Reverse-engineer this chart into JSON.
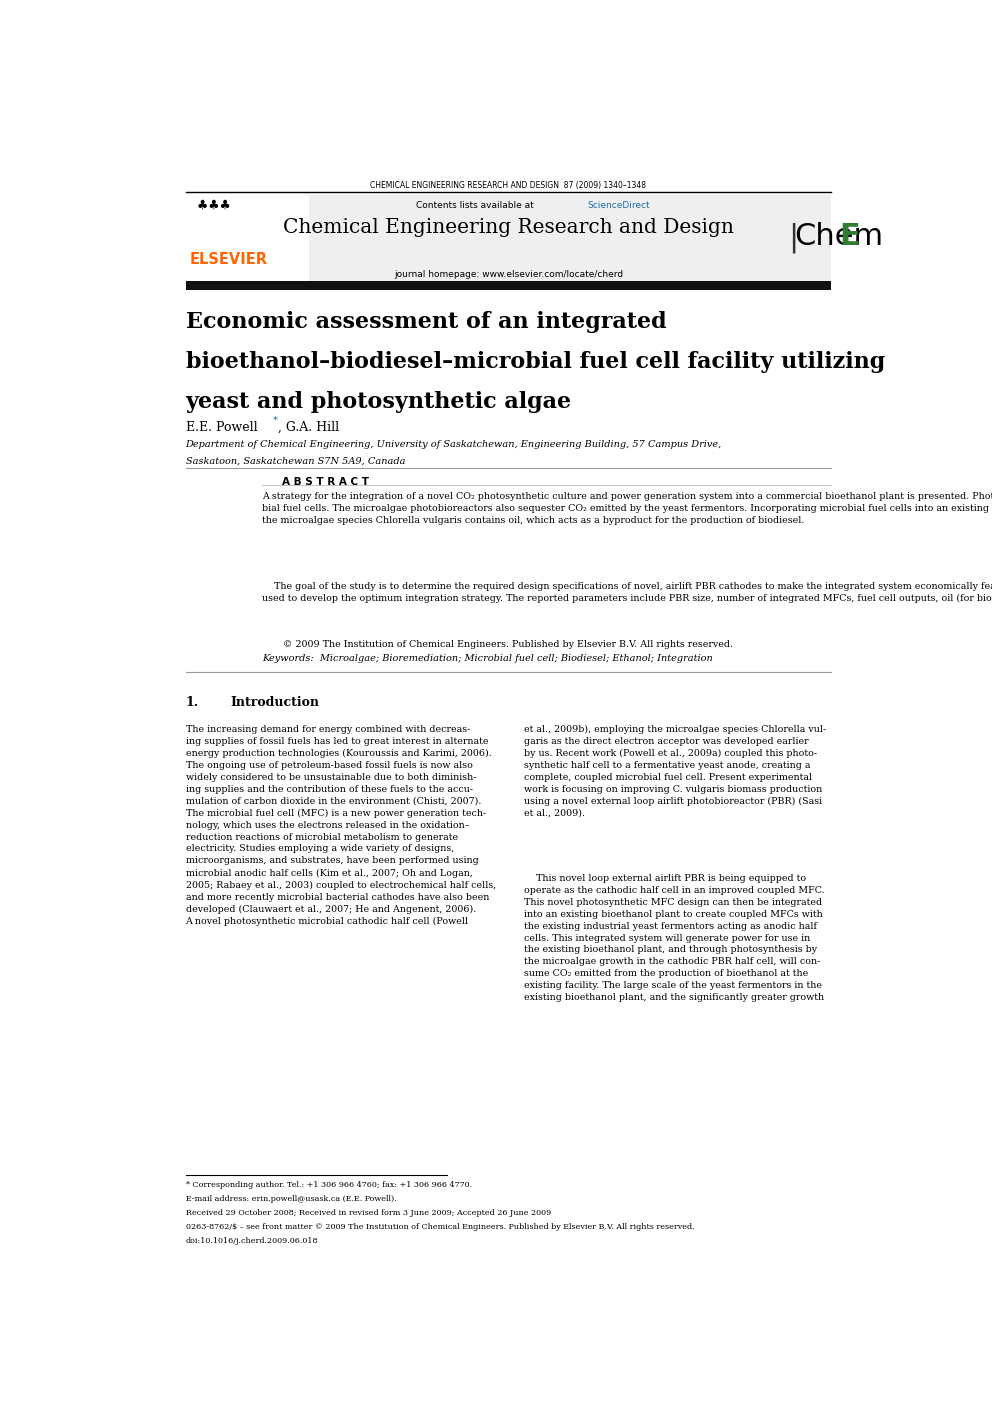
{
  "page_width": 9.92,
  "page_height": 14.03,
  "bg_color": "#ffffff",
  "header_journal": "CHEMICAL ENGINEERING RESEARCH AND DESIGN  87 (2009) 1340–1348",
  "journal_name": "Chemical Engineering Research and Design",
  "journal_url": "journal homepage: www.elsevier.com/locate/cherd",
  "sciencedirect_color": "#1a6faf",
  "elsevier_color": "#ff6600",
  "ichemE_color": "#2e7d32",
  "affiliation1": "Department of Chemical Engineering, University of Saskatchewan, Engineering Building, 57 Campus Drive,",
  "affiliation2": "Saskatoon, Saskatchewan S7N 5A9, Canada",
  "abstract_title": "A B S T R A C T",
  "copyright_text": "© 2009 The Institution of Chemical Engineers. Published by Elsevier B.V. All rights reserved.",
  "keywords_text": "Keywords:  Microalgae; Bioremediation; Microbial fuel cell; Biodiesel; Ethanol; Integration",
  "footnote1": "* Corresponding author. Tel.: +1 306 966 4760; fax: +1 306 966 4770.",
  "footnote2": "E-mail address: erin.powell@usask.ca (E.E. Powell).",
  "footnote3": "Received 29 October 2008; Received in revised form 3 June 2009; Accepted 26 June 2009",
  "footnote4": "0263-8762/$ – see front matter © 2009 The Institution of Chemical Engineers. Published by Elsevier B.V. All rights reserved.",
  "footnote5": "doi:10.1016/j.cherd.2009.06.018"
}
